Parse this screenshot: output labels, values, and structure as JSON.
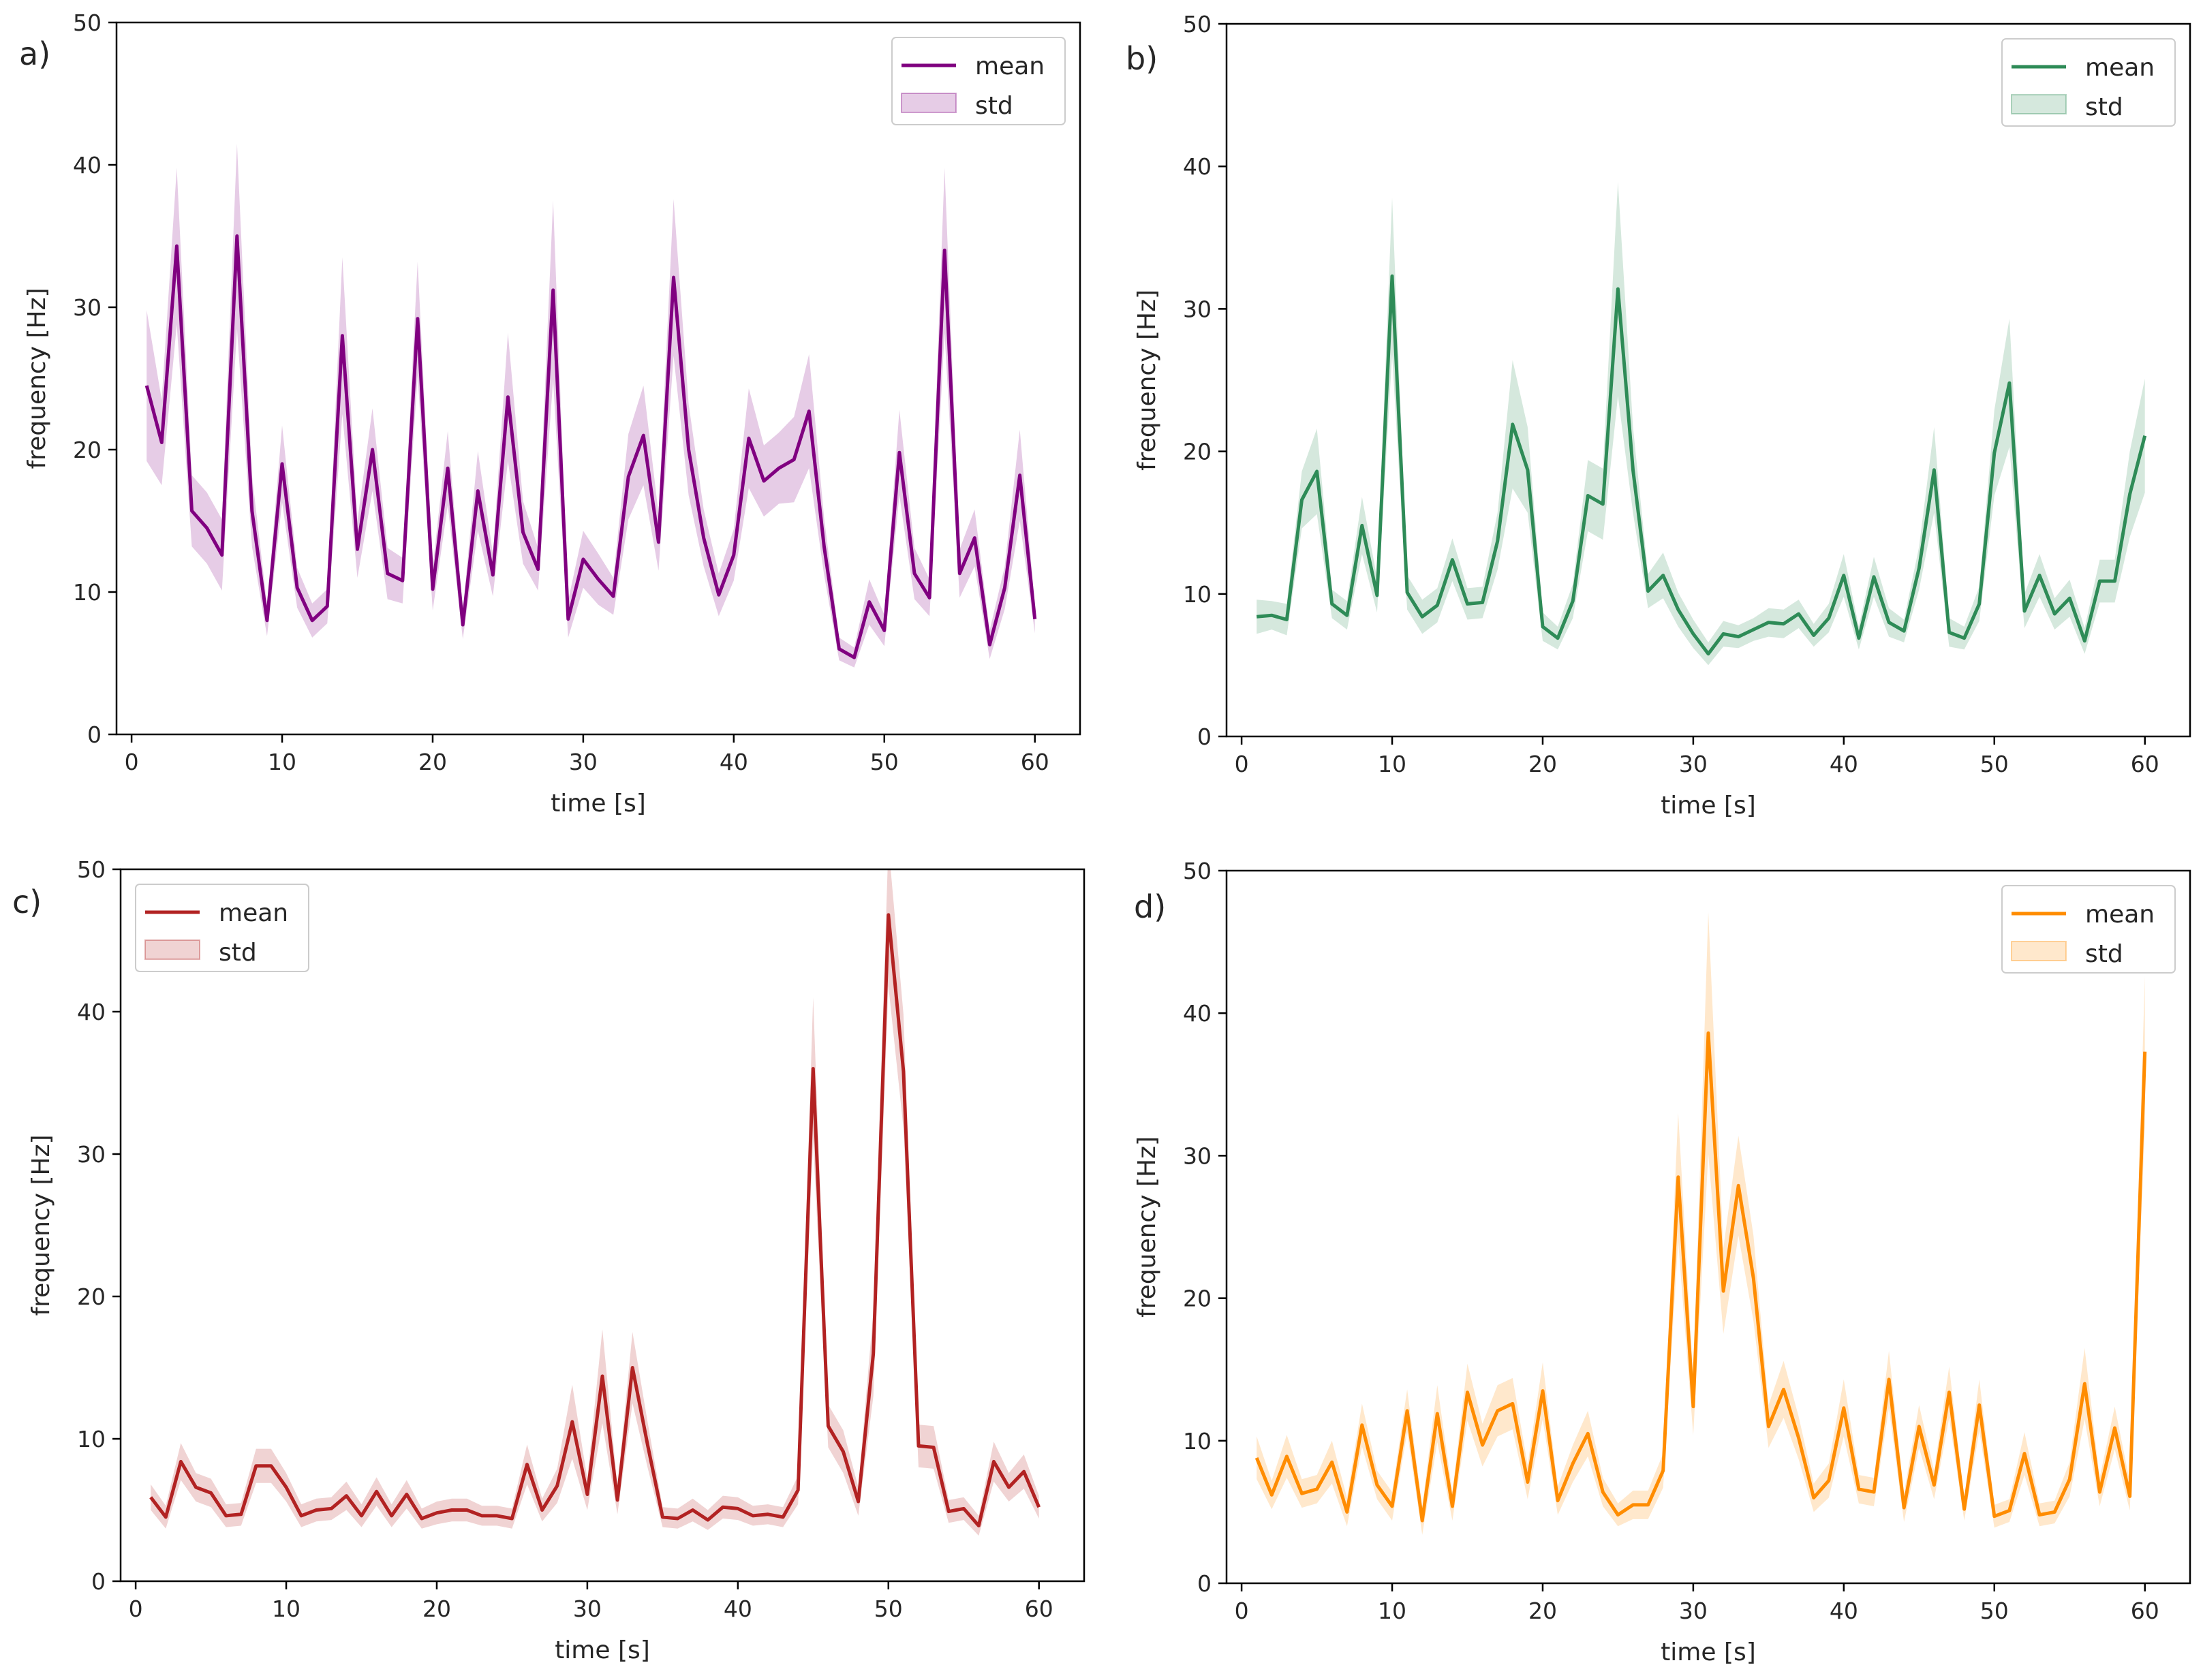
{
  "figure": {
    "panels": [
      "a",
      "b",
      "c",
      "d"
    ]
  },
  "chart_data": [
    {
      "panel_label": "a)",
      "type": "line",
      "xlabel": "time [s]",
      "ylabel": "frequency [Hz]",
      "xlim": [
        -1,
        63
      ],
      "ylim": [
        0,
        50
      ],
      "xticks": [
        0,
        10,
        20,
        30,
        40,
        50,
        60
      ],
      "yticks": [
        0,
        10,
        20,
        30,
        40,
        50
      ],
      "grid": false,
      "legend_position": "top-right",
      "color": "#800080",
      "legend": {
        "mean": "mean",
        "std": "std"
      },
      "x": [
        1,
        2,
        3,
        4,
        5,
        6,
        7,
        8,
        9,
        10,
        11,
        12,
        13,
        14,
        15,
        16,
        17,
        18,
        19,
        20,
        21,
        22,
        23,
        24,
        25,
        26,
        27,
        28,
        29,
        30,
        31,
        32,
        33,
        34,
        35,
        36,
        37,
        38,
        39,
        40,
        41,
        42,
        43,
        44,
        45,
        46,
        47,
        48,
        49,
        50,
        51,
        52,
        53,
        54,
        55,
        56,
        57,
        58,
        59,
        60
      ],
      "mean": [
        24.5,
        20.5,
        34.3,
        15.7,
        14.5,
        12.6,
        35,
        15.7,
        8,
        19,
        10.3,
        8,
        9,
        28,
        13,
        20,
        11.3,
        10.8,
        29.2,
        10.2,
        18.7,
        7.7,
        17.1,
        11.2,
        23.7,
        14.2,
        11.6,
        31.2,
        8.1,
        12.3,
        10.9,
        9.7,
        18.1,
        21,
        13.5,
        32.1,
        20,
        13.8,
        9.8,
        12.6,
        20.8,
        17.8,
        18.7,
        19.3,
        22.7,
        13.2,
        6,
        5.4,
        9.3,
        7.3,
        19.8,
        11.3,
        9.6,
        34,
        11.3,
        13.8,
        6.3,
        10.3,
        18.2,
        8.1
      ],
      "std": [
        5.3,
        3,
        5.5,
        2.5,
        2.5,
        2.5,
        6.5,
        2.5,
        1.1,
        2.7,
        1.4,
        1.2,
        1.2,
        5.5,
        2,
        2.9,
        1.8,
        1.6,
        4,
        1.5,
        2.6,
        1,
        2.8,
        1.5,
        4.5,
        2.2,
        1.5,
        6.3,
        1.3,
        2,
        1.8,
        1.3,
        3,
        3.5,
        2,
        5.5,
        3.2,
        2,
        1.5,
        1.8,
        3.5,
        2.5,
        2.5,
        3,
        4,
        2,
        0.8,
        0.7,
        1.6,
        1.1,
        3,
        1.8,
        1.3,
        5.8,
        1.7,
        2,
        1,
        1.5,
        3.2,
        1
      ],
      "label_color": "#000000"
    },
    {
      "panel_label": "b)",
      "type": "line",
      "xlabel": "time [s]",
      "ylabel": "frequency [Hz]",
      "xlim": [
        -1,
        63
      ],
      "ylim": [
        0,
        50
      ],
      "xticks": [
        0,
        10,
        20,
        30,
        40,
        50,
        60
      ],
      "yticks": [
        0,
        10,
        20,
        30,
        40,
        50
      ],
      "grid": false,
      "legend_position": "top-right",
      "color": "#2e8b57",
      "legend": {
        "mean": "mean",
        "std": "std"
      },
      "x": [
        1,
        2,
        3,
        4,
        5,
        6,
        7,
        8,
        9,
        10,
        11,
        12,
        13,
        14,
        15,
        16,
        17,
        18,
        19,
        20,
        21,
        22,
        23,
        24,
        25,
        26,
        27,
        28,
        29,
        30,
        31,
        32,
        33,
        34,
        35,
        36,
        37,
        38,
        39,
        40,
        41,
        42,
        43,
        44,
        45,
        46,
        47,
        48,
        49,
        50,
        51,
        52,
        53,
        54,
        55,
        56,
        57,
        58,
        59,
        60
      ],
      "mean": [
        8.4,
        8.5,
        8.2,
        16.6,
        18.6,
        9.3,
        8.5,
        14.8,
        9.9,
        32.3,
        10.1,
        8.4,
        9.2,
        12.4,
        9.3,
        9.4,
        13.7,
        21.9,
        18.7,
        7.7,
        6.9,
        9.5,
        16.9,
        16.3,
        31.4,
        18.7,
        10.2,
        11.3,
        8.9,
        7.2,
        5.8,
        7.2,
        7,
        7.5,
        8,
        7.9,
        8.6,
        7.1,
        8.3,
        11.3,
        6.9,
        11.2,
        8,
        7.4,
        11.8,
        18.7,
        7.3,
        6.9,
        9.3,
        19.9,
        24.8,
        8.8,
        11.3,
        8.6,
        9.7,
        6.7,
        10.9,
        10.9,
        17,
        21.1
      ],
      "std": [
        1.2,
        1,
        1.1,
        2,
        3,
        1,
        1,
        2,
        1.2,
        5.5,
        1.2,
        1.2,
        1.2,
        1.5,
        1.1,
        1.1,
        2,
        4.5,
        3,
        1,
        0.8,
        1.2,
        2.5,
        2.5,
        7.5,
        3,
        1.2,
        1.6,
        1.2,
        1,
        0.8,
        0.9,
        0.8,
        0.8,
        1,
        1,
        1,
        0.8,
        1,
        1.5,
        0.8,
        1.4,
        1,
        0.8,
        1.5,
        3,
        1,
        0.8,
        1.2,
        3,
        4.5,
        1.2,
        1.5,
        1.1,
        1.3,
        0.9,
        1.5,
        1.5,
        3,
        4
      ],
      "label_color": "#000000"
    },
    {
      "panel_label": "c)",
      "type": "line",
      "xlabel": "time [s]",
      "ylabel": "frequency [Hz]",
      "xlim": [
        -1,
        63
      ],
      "ylim": [
        0,
        50
      ],
      "xticks": [
        0,
        10,
        20,
        30,
        40,
        50,
        60
      ],
      "yticks": [
        0,
        10,
        20,
        30,
        40,
        50
      ],
      "grid": false,
      "legend_position": "top-left",
      "color": "#b22222",
      "legend": {
        "mean": "mean",
        "std": "std"
      },
      "x": [
        1,
        2,
        3,
        4,
        5,
        6,
        7,
        8,
        9,
        10,
        11,
        12,
        13,
        14,
        15,
        16,
        17,
        18,
        19,
        20,
        21,
        22,
        23,
        24,
        25,
        26,
        27,
        28,
        29,
        30,
        31,
        32,
        33,
        34,
        35,
        36,
        37,
        38,
        39,
        40,
        41,
        42,
        43,
        44,
        45,
        46,
        47,
        48,
        49,
        50,
        51,
        52,
        53,
        54,
        55,
        56,
        57,
        58,
        59,
        60
      ],
      "mean": [
        5.9,
        4.5,
        8.4,
        6.6,
        6.2,
        4.6,
        4.7,
        8.1,
        8.1,
        6.6,
        4.6,
        5,
        5.1,
        6,
        4.6,
        6.3,
        4.6,
        6.1,
        4.4,
        4.8,
        5,
        5,
        4.6,
        4.6,
        4.4,
        8.2,
        5,
        6.7,
        11.2,
        6.1,
        14.4,
        5.7,
        15,
        9.6,
        4.5,
        4.4,
        5,
        4.3,
        5.2,
        5.1,
        4.6,
        4.7,
        4.5,
        6.4,
        36,
        10.9,
        9.1,
        5.6,
        16,
        46.8,
        35.8,
        9.5,
        9.4,
        4.9,
        5.1,
        3.9,
        8.4,
        6.6,
        7.7,
        5.2
      ],
      "std": [
        0.9,
        0.8,
        1.3,
        1,
        1,
        0.8,
        0.8,
        1.2,
        1.2,
        1,
        0.8,
        0.8,
        0.8,
        1,
        0.8,
        1,
        0.8,
        1,
        0.7,
        0.8,
        0.8,
        0.8,
        0.7,
        0.7,
        0.7,
        1.4,
        0.8,
        1.2,
        2.6,
        1.1,
        3.3,
        1,
        2.5,
        1.6,
        0.7,
        0.7,
        0.8,
        0.7,
        0.8,
        0.8,
        0.7,
        0.7,
        0.7,
        1,
        5,
        1.5,
        1.5,
        1,
        3,
        5,
        4,
        1.5,
        1.5,
        0.8,
        0.8,
        0.7,
        1.4,
        1,
        1.2,
        0.8
      ],
      "label_color": "#000000"
    },
    {
      "panel_label": "d)",
      "type": "line",
      "xlabel": "time [s]",
      "ylabel": "frequency [Hz]",
      "xlim": [
        -1,
        63
      ],
      "ylim": [
        0,
        50
      ],
      "xticks": [
        0,
        10,
        20,
        30,
        40,
        50,
        60
      ],
      "yticks": [
        0,
        10,
        20,
        30,
        40,
        50
      ],
      "grid": false,
      "legend_position": "top-right",
      "color": "#ff8c00",
      "legend": {
        "mean": "mean",
        "std": "std"
      },
      "x": [
        1,
        2,
        3,
        4,
        5,
        6,
        7,
        8,
        9,
        10,
        11,
        12,
        13,
        14,
        15,
        16,
        17,
        18,
        19,
        20,
        21,
        22,
        23,
        24,
        25,
        26,
        27,
        28,
        29,
        30,
        31,
        32,
        33,
        34,
        35,
        36,
        37,
        38,
        39,
        40,
        41,
        42,
        43,
        44,
        45,
        46,
        47,
        48,
        49,
        50,
        51,
        52,
        53,
        54,
        55,
        56,
        57,
        58,
        59,
        60
      ],
      "mean": [
        8.8,
        6.2,
        8.9,
        6.3,
        6.6,
        8.5,
        5,
        11.1,
        6.9,
        5.4,
        12.1,
        4.4,
        11.9,
        5.4,
        13.4,
        9.7,
        12.1,
        12.6,
        7.1,
        13.5,
        5.8,
        8.4,
        10.5,
        6.4,
        4.8,
        5.5,
        5.5,
        7.9,
        28.5,
        12.4,
        38.6,
        20.5,
        27.9,
        21.4,
        11,
        13.6,
        10.2,
        6,
        7.2,
        12.3,
        6.6,
        6.4,
        14.3,
        5.3,
        11,
        6.9,
        13.4,
        5.2,
        12.5,
        4.7,
        5.1,
        9.1,
        4.8,
        5,
        7.3,
        14,
        6.4,
        10.9,
        6.1,
        37.3
      ],
      "std": [
        1.5,
        1,
        1.5,
        1,
        1,
        1.5,
        1,
        1.5,
        1,
        1,
        1.5,
        1,
        2,
        1,
        2,
        1.5,
        1.8,
        1.8,
        1.2,
        2,
        1,
        1.3,
        1.6,
        1,
        0.8,
        1,
        1,
        1.2,
        4.5,
        2,
        8.5,
        3,
        3.5,
        3,
        1.5,
        2,
        1.5,
        1,
        1.2,
        2,
        1,
        1,
        2,
        1,
        1.5,
        1,
        1.8,
        0.8,
        1.8,
        0.8,
        0.8,
        1.5,
        0.8,
        0.8,
        1.2,
        2.5,
        1,
        1.5,
        1,
        5.3
      ],
      "label_color": "#000000"
    }
  ]
}
